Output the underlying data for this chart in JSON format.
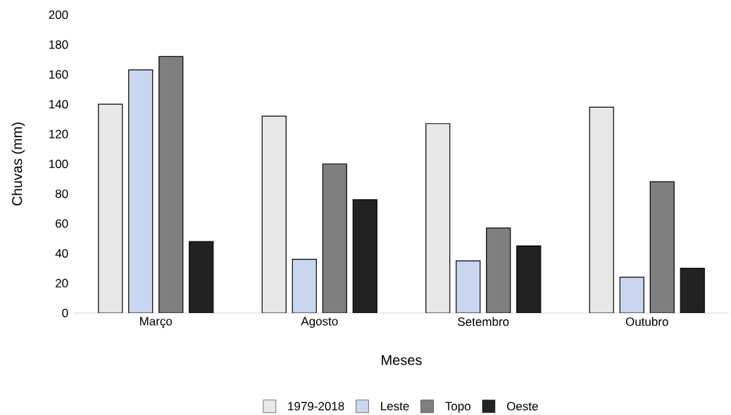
{
  "chart_data": {
    "type": "bar",
    "xlabel": "Meses",
    "ylabel": "Chuvas (mm)",
    "categories": [
      "Março",
      "Agosto",
      "Setembro",
      "Outubro"
    ],
    "series": [
      {
        "name": "1979-2018",
        "color": "#e8e8e8",
        "values": [
          140,
          132,
          127,
          138
        ]
      },
      {
        "name": "Leste",
        "color": "#c9d6f0",
        "values": [
          163,
          36,
          35,
          24
        ]
      },
      {
        "name": "Topo",
        "color": "#7f7f7f",
        "values": [
          172,
          100,
          57,
          88
        ]
      },
      {
        "name": "Oeste",
        "color": "#222222",
        "values": [
          48,
          76,
          45,
          30
        ]
      }
    ],
    "ylim": [
      0,
      200
    ],
    "yticks": [
      0,
      20,
      40,
      60,
      80,
      100,
      120,
      140,
      160,
      180,
      200
    ],
    "legend": "bottom"
  }
}
